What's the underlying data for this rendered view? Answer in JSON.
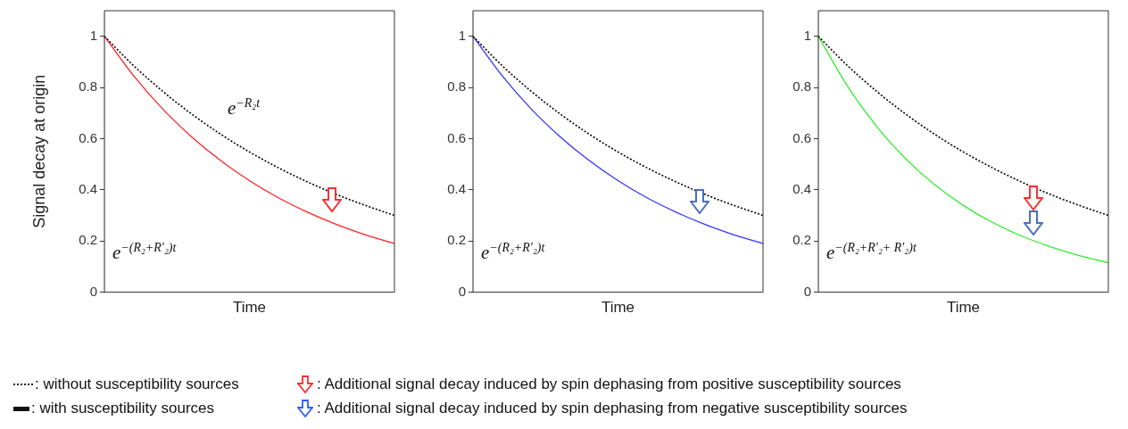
{
  "chart_data": [
    {
      "type": "line",
      "ylabel": "Signal decay at origin",
      "xlabel": "Time",
      "categories": [
        null,
        null,
        null,
        null,
        null,
        null,
        null,
        null,
        null,
        null,
        null
      ],
      "ylim": [
        0,
        1.1
      ],
      "yticks": [
        0,
        0.2,
        0.4,
        0.6,
        0.8,
        1
      ],
      "grid": false,
      "marker": "none",
      "tick_labels": "y",
      "series": [
        {
          "color": "#000000",
          "line_style": "dotted",
          "values": [
            1,
            0.886,
            0.786,
            0.697,
            0.618,
            0.548,
            0.486,
            0.431,
            0.382,
            0.339,
            0.3
          ]
        },
        {
          "color": "#ff2020",
          "line_style": "solid",
          "values": [
            1,
            0.847,
            0.717,
            0.608,
            0.515,
            0.436,
            0.369,
            0.313,
            0.265,
            0.224,
            0.19
          ]
        }
      ],
      "annotations": [
        "e$^{−R₂t}$",
        "e$^{−(R₂+R′₂)t}$"
      ]
    },
    {
      "type": "line",
      "xlabel": "Time",
      "categories": [
        null,
        null,
        null,
        null,
        null,
        null,
        null,
        null,
        null,
        null,
        null
      ],
      "ylim": [
        0,
        1.1
      ],
      "yticks": [
        0,
        0.2,
        0.4,
        0.6,
        0.8,
        1
      ],
      "grid": false,
      "marker": "none",
      "tick_labels": "y",
      "series": [
        {
          "color": "#000000",
          "line_style": "dotted",
          "values": [
            1,
            0.886,
            0.786,
            0.697,
            0.618,
            0.548,
            0.486,
            0.431,
            0.382,
            0.339,
            0.3
          ]
        },
        {
          "color": "#3333ff",
          "line_style": "solid",
          "values": [
            1,
            0.847,
            0.717,
            0.608,
            0.515,
            0.436,
            0.369,
            0.313,
            0.265,
            0.224,
            0.19
          ]
        }
      ],
      "annotations": [
        "e$^{−(R₂+R′₂)t}$"
      ]
    },
    {
      "type": "line",
      "xlabel": "Time",
      "categories": [
        null,
        null,
        null,
        null,
        null,
        null,
        null,
        null,
        null,
        null,
        null
      ],
      "ylim": [
        0,
        1.1
      ],
      "yticks": [
        0,
        0.2,
        0.4,
        0.6,
        0.8,
        1
      ],
      "grid": false,
      "marker": "none",
      "tick_labels": "y",
      "series": [
        {
          "color": "#000000",
          "line_style": "dotted",
          "values": [
            1,
            0.886,
            0.786,
            0.697,
            0.618,
            0.548,
            0.486,
            0.431,
            0.382,
            0.339,
            0.3
          ]
        },
        {
          "color": "#33ee33",
          "line_style": "solid",
          "values": [
            1,
            0.806,
            0.649,
            0.523,
            0.421,
            0.339,
            0.273,
            0.22,
            0.178,
            0.143,
            0.115
          ]
        }
      ],
      "annotations": [
        "e$^{−(R₂+R′₂+ R′₂)t}$"
      ]
    },
    {
      "type": "other",
      "annotations": [
        ": without susceptibility sources",
        ": with susceptibility sources",
        ": Additional signal decay induced by spin dephasing from positive susceptibility sources",
        ": Additional signal decay induced by spin dephasing from negative susceptibility sources"
      ]
    }
  ]
}
